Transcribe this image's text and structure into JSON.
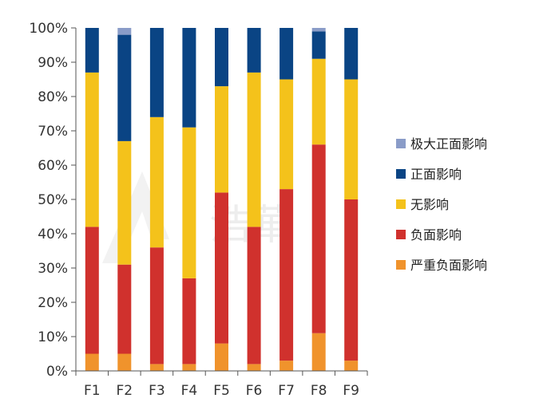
{
  "watermark": {
    "text": "浩華"
  },
  "chart_data": {
    "type": "bar",
    "stacked": true,
    "percent": true,
    "categories": [
      "F1",
      "F2",
      "F3",
      "F4",
      "F5",
      "F6",
      "F7",
      "F8",
      "F9"
    ],
    "y_ticks": [
      "0%",
      "10%",
      "20%",
      "30%",
      "40%",
      "50%",
      "60%",
      "70%",
      "80%",
      "90%",
      "100%"
    ],
    "ylim": [
      0,
      100
    ],
    "grid": false,
    "legend_position": "right",
    "series": [
      {
        "name": "严重负面影响",
        "color": "#f0932c",
        "values": [
          5,
          5,
          2,
          2,
          8,
          2,
          3,
          11,
          3
        ]
      },
      {
        "name": "负面影响",
        "color": "#d0312d",
        "values": [
          37,
          26,
          34,
          25,
          44,
          40,
          50,
          55,
          47
        ]
      },
      {
        "name": "无影响",
        "color": "#f4c21b",
        "values": [
          45,
          36,
          38,
          44,
          31,
          45,
          32,
          25,
          35
        ]
      },
      {
        "name": "正面影响",
        "color": "#0a4484",
        "values": [
          13,
          31,
          26,
          29,
          17,
          13,
          15,
          8,
          15
        ]
      },
      {
        "name": "极大正面影响",
        "color": "#8a9cc8",
        "values": [
          0,
          2,
          0,
          0,
          0,
          0,
          0,
          1,
          0
        ]
      }
    ]
  }
}
